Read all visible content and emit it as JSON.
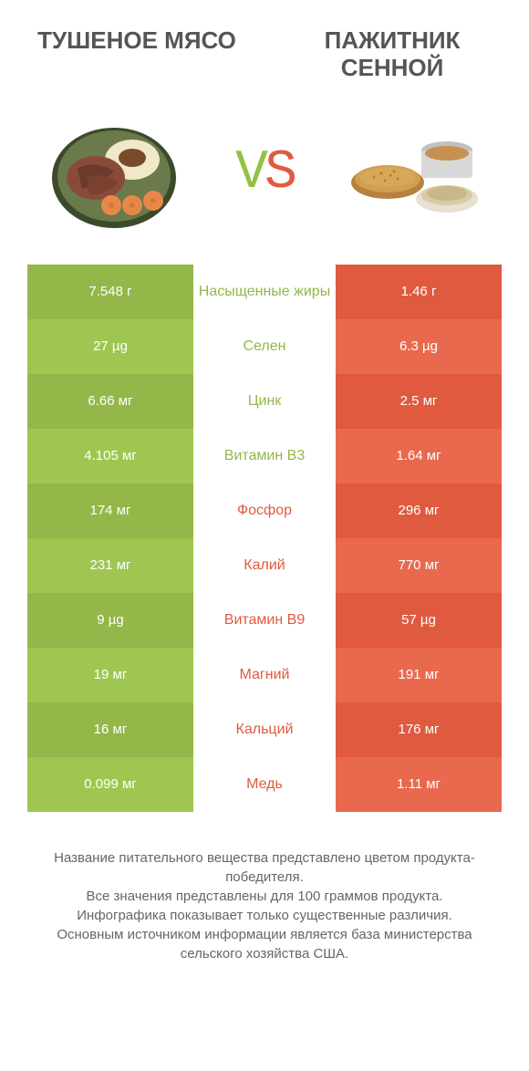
{
  "colors": {
    "green_dark": "#94b749",
    "green_light": "#9fc651",
    "orange_dark": "#e05a3f",
    "orange_light": "#e9694f",
    "label_green": "#94b749",
    "label_orange": "#e05a3f"
  },
  "header": {
    "left_title": "ТУШЕНОЕ МЯСО",
    "right_title": "ПАЖИТНИК СЕННОЙ",
    "vs": "VS"
  },
  "rows": [
    {
      "left": "7.548 г",
      "label": "Насыщенные жиры",
      "right": "1.46 г",
      "winner": "left"
    },
    {
      "left": "27 µg",
      "label": "Селен",
      "right": "6.3 µg",
      "winner": "left"
    },
    {
      "left": "6.66 мг",
      "label": "Цинк",
      "right": "2.5 мг",
      "winner": "left"
    },
    {
      "left": "4.105 мг",
      "label": "Витамин B3",
      "right": "1.64 мг",
      "winner": "left"
    },
    {
      "left": "174 мг",
      "label": "Фосфор",
      "right": "296 мг",
      "winner": "right"
    },
    {
      "left": "231 мг",
      "label": "Калий",
      "right": "770 мг",
      "winner": "right"
    },
    {
      "left": "9 µg",
      "label": "Витамин B9",
      "right": "57 µg",
      "winner": "right"
    },
    {
      "left": "19 мг",
      "label": "Магний",
      "right": "191 мг",
      "winner": "right"
    },
    {
      "left": "16 мг",
      "label": "Кальций",
      "right": "176 мг",
      "winner": "right"
    },
    {
      "left": "0.099 мг",
      "label": "Медь",
      "right": "1.11 мг",
      "winner": "right"
    }
  ],
  "footer": {
    "line1": "Название питательного вещества представлено цветом продукта-победителя.",
    "line2": "Все значения представлены для 100 граммов продукта.",
    "line3": "Инфографика показывает только существенные различия.",
    "line4": "Основным источником информации является база министерства сельского хозяйства США."
  }
}
